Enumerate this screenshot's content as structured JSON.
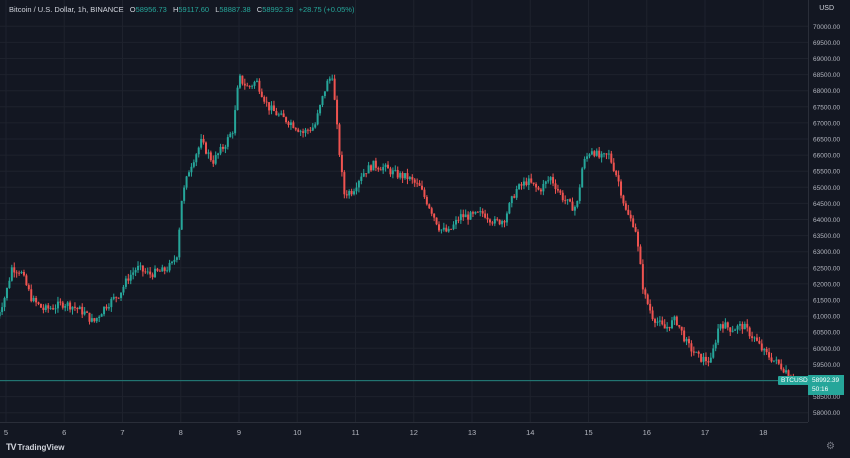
{
  "header": {
    "title": "Bitcoin / U.S. Dollar, 1h, BINANCE",
    "o_label": "O",
    "o_value": "58956.73",
    "h_label": "H",
    "h_value": "59117.60",
    "l_label": "L",
    "l_value": "58887.38",
    "c_label": "C",
    "c_value": "58992.39",
    "change": "+28.75 (+0.05%)"
  },
  "currency": "USD",
  "branding": {
    "logo": "TV",
    "name": "TradingView"
  },
  "settings_icon": "gear-icon",
  "price_label": {
    "symbol": "BTCUSD",
    "price": "58992.39",
    "countdown": "50:16"
  },
  "colors": {
    "up": "#26a69a",
    "down": "#ef5350",
    "bg": "#131722",
    "grid": "#1e222d",
    "text": "#d1d4dc"
  },
  "chart_data": {
    "type": "candlestick",
    "interval": "1h",
    "y_ticks": [
      "70000.00",
      "69500.00",
      "69000.00",
      "68500.00",
      "68000.00",
      "67500.00",
      "67000.00",
      "66500.00",
      "66000.00",
      "65500.00",
      "65000.00",
      "64500.00",
      "64000.00",
      "63500.00",
      "63000.00",
      "62500.00",
      "62000.00",
      "61500.00",
      "61000.00",
      "60500.00",
      "60000.00",
      "59500.00",
      "59000.00",
      "58500.00",
      "58000.00"
    ],
    "x_ticks": [
      "5",
      "6",
      "7",
      "8",
      "9",
      "10",
      "11",
      "12",
      "13",
      "14",
      "15",
      "16",
      "17",
      "18"
    ],
    "ylim": [
      57500,
      70300
    ],
    "grid": true,
    "current_price": 58992.39,
    "anchors": [
      [
        4.85,
        61000
      ],
      [
        5.0,
        61700
      ],
      [
        5.1,
        62500
      ],
      [
        5.25,
        62400
      ],
      [
        5.45,
        61500
      ],
      [
        5.65,
        61200
      ],
      [
        5.85,
        61300
      ],
      [
        6.0,
        61400
      ],
      [
        6.15,
        61300
      ],
      [
        6.35,
        61100
      ],
      [
        6.5,
        60800
      ],
      [
        6.7,
        61300
      ],
      [
        6.95,
        61700
      ],
      [
        7.1,
        62200
      ],
      [
        7.25,
        62500
      ],
      [
        7.45,
        62300
      ],
      [
        7.7,
        62400
      ],
      [
        7.85,
        62600
      ],
      [
        7.95,
        63000
      ],
      [
        8.0,
        64500
      ],
      [
        8.15,
        65600
      ],
      [
        8.35,
        66400
      ],
      [
        8.55,
        65800
      ],
      [
        8.75,
        66300
      ],
      [
        8.9,
        66800
      ],
      [
        9.0,
        68400
      ],
      [
        9.15,
        68100
      ],
      [
        9.3,
        68300
      ],
      [
        9.5,
        67500
      ],
      [
        9.7,
        67200
      ],
      [
        9.9,
        67000
      ],
      [
        10.1,
        66700
      ],
      [
        10.3,
        66900
      ],
      [
        10.5,
        68200
      ],
      [
        10.6,
        68500
      ],
      [
        10.7,
        66500
      ],
      [
        10.8,
        64800
      ],
      [
        10.95,
        64900
      ],
      [
        11.1,
        65400
      ],
      [
        11.3,
        65700
      ],
      [
        11.5,
        65600
      ],
      [
        11.7,
        65400
      ],
      [
        11.9,
        65300
      ],
      [
        12.1,
        65000
      ],
      [
        12.3,
        64300
      ],
      [
        12.45,
        63700
      ],
      [
        12.6,
        63600
      ],
      [
        12.8,
        64100
      ],
      [
        13.0,
        64100
      ],
      [
        13.2,
        64200
      ],
      [
        13.4,
        63900
      ],
      [
        13.55,
        64000
      ],
      [
        13.75,
        64900
      ],
      [
        13.95,
        65200
      ],
      [
        14.15,
        64900
      ],
      [
        14.35,
        65300
      ],
      [
        14.55,
        64700
      ],
      [
        14.7,
        64400
      ],
      [
        14.8,
        64400
      ],
      [
        14.9,
        65700
      ],
      [
        15.05,
        66200
      ],
      [
        15.2,
        65900
      ],
      [
        15.35,
        66000
      ],
      [
        15.5,
        65300
      ],
      [
        15.65,
        64200
      ],
      [
        15.8,
        63800
      ],
      [
        15.95,
        61700
      ],
      [
        16.1,
        61000
      ],
      [
        16.3,
        60600
      ],
      [
        16.5,
        60900
      ],
      [
        16.7,
        60100
      ],
      [
        16.9,
        59700
      ],
      [
        17.1,
        59600
      ],
      [
        17.25,
        60800
      ],
      [
        17.45,
        60600
      ],
      [
        17.65,
        60700
      ],
      [
        17.85,
        60300
      ],
      [
        18.0,
        59900
      ],
      [
        18.2,
        59600
      ],
      [
        18.4,
        59300
      ],
      [
        18.55,
        59000
      ]
    ]
  }
}
